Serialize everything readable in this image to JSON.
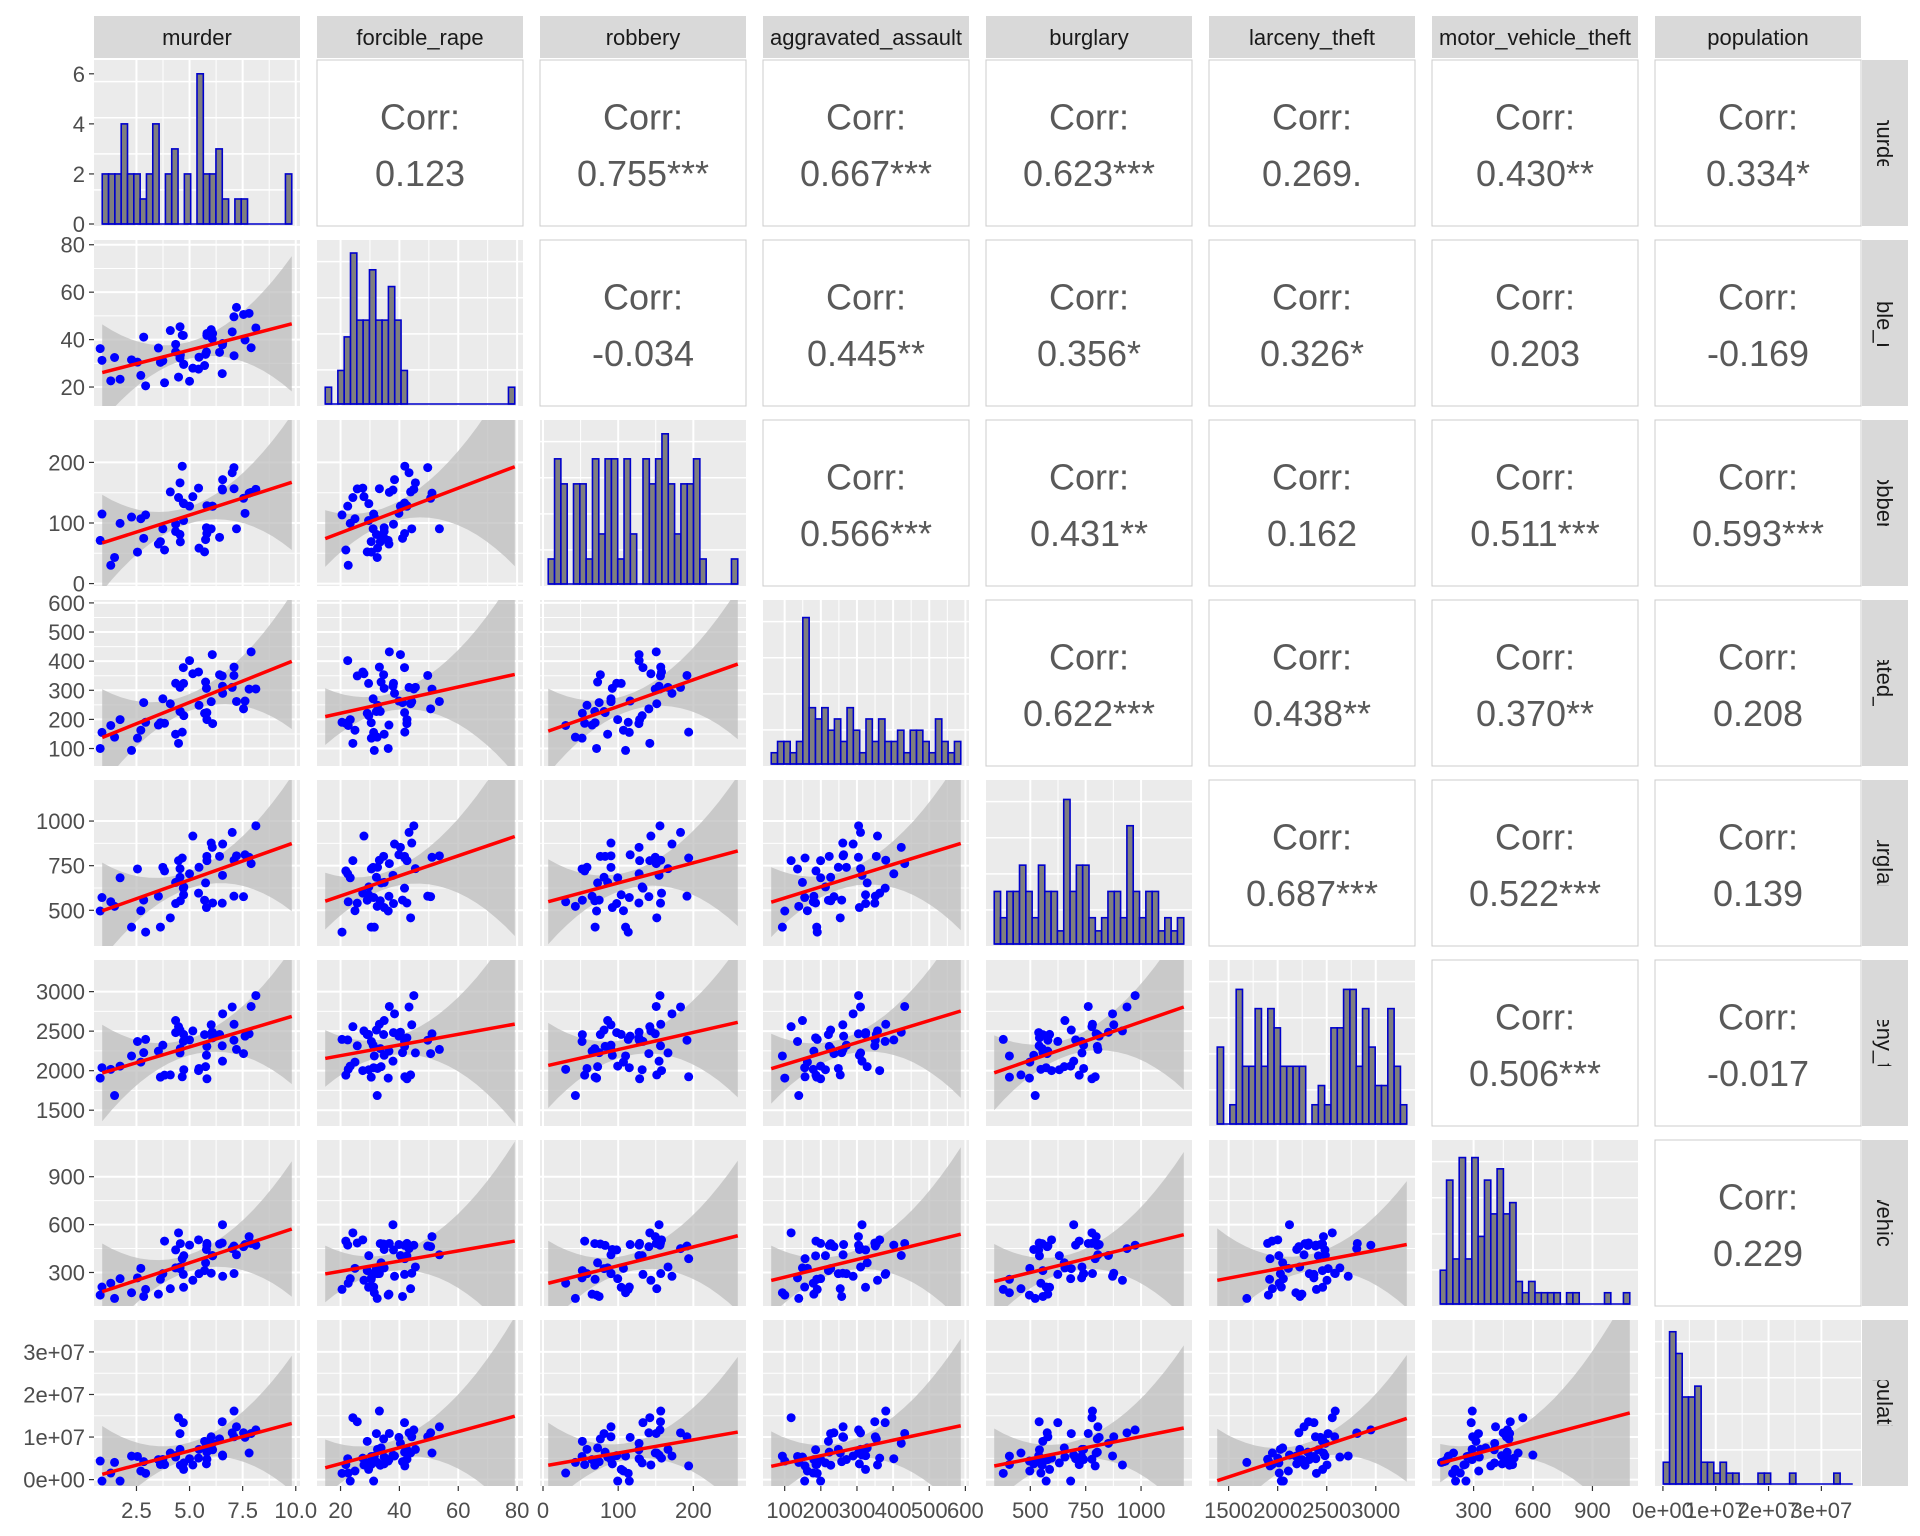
{
  "chart_data": {
    "type": "scatter-matrix",
    "variables": [
      "murder",
      "forcible_rape",
      "robbery",
      "aggravated_assault",
      "burglary",
      "larceny_theft",
      "motor_vehicle_theft",
      "population"
    ],
    "corr_label": "Corr:",
    "correlations": [
      {
        "row": "forcible_rape",
        "col": "murder",
        "value": "0.123"
      },
      {
        "row": "robbery",
        "col": "murder",
        "value": "0.755***"
      },
      {
        "row": "aggravated_assault",
        "col": "murder",
        "value": "0.667***"
      },
      {
        "row": "burglary",
        "col": "murder",
        "value": "0.623***"
      },
      {
        "row": "larceny_theft",
        "col": "murder",
        "value": "0.269."
      },
      {
        "row": "motor_vehicle_theft",
        "col": "murder",
        "value": "0.430**"
      },
      {
        "row": "population",
        "col": "murder",
        "value": "0.334*"
      },
      {
        "row": "robbery",
        "col": "forcible_rape",
        "value": "-0.034"
      },
      {
        "row": "aggravated_assault",
        "col": "forcible_rape",
        "value": "0.445**"
      },
      {
        "row": "burglary",
        "col": "forcible_rape",
        "value": "0.356*"
      },
      {
        "row": "larceny_theft",
        "col": "forcible_rape",
        "value": "0.326*"
      },
      {
        "row": "motor_vehicle_theft",
        "col": "forcible_rape",
        "value": "0.203"
      },
      {
        "row": "population",
        "col": "forcible_rape",
        "value": "-0.169"
      },
      {
        "row": "aggravated_assault",
        "col": "robbery",
        "value": "0.566***"
      },
      {
        "row": "burglary",
        "col": "robbery",
        "value": "0.431**"
      },
      {
        "row": "larceny_theft",
        "col": "robbery",
        "value": "0.162"
      },
      {
        "row": "motor_vehicle_theft",
        "col": "robbery",
        "value": "0.511***"
      },
      {
        "row": "population",
        "col": "robbery",
        "value": "0.593***"
      },
      {
        "row": "burglary",
        "col": "aggravated_assault",
        "value": "0.622***"
      },
      {
        "row": "larceny_theft",
        "col": "aggravated_assault",
        "value": "0.438**"
      },
      {
        "row": "motor_vehicle_theft",
        "col": "aggravated_assault",
        "value": "0.370**"
      },
      {
        "row": "population",
        "col": "aggravated_assault",
        "value": "0.208"
      },
      {
        "row": "larceny_theft",
        "col": "burglary",
        "value": "0.687***"
      },
      {
        "row": "motor_vehicle_theft",
        "col": "burglary",
        "value": "0.522***"
      },
      {
        "row": "population",
        "col": "burglary",
        "value": "0.139"
      },
      {
        "row": "motor_vehicle_theft",
        "col": "larceny_theft",
        "value": "0.506***"
      },
      {
        "row": "population",
        "col": "larceny_theft",
        "value": "-0.017"
      },
      {
        "row": "population",
        "col": "motor_vehicle_theft",
        "value": "0.229"
      }
    ],
    "x_ticks": {
      "murder": [
        {
          "v": 2.5,
          "t": "2.5"
        },
        {
          "v": 5,
          "t": "5.0"
        },
        {
          "v": 7.5,
          "t": "7.5"
        },
        {
          "v": 10,
          "t": "10.0"
        }
      ],
      "forcible_rape": [
        {
          "v": 20,
          "t": "20"
        },
        {
          "v": 40,
          "t": "40"
        },
        {
          "v": 60,
          "t": "60"
        },
        {
          "v": 80,
          "t": "80"
        }
      ],
      "robbery": [
        {
          "v": 0,
          "t": "0"
        },
        {
          "v": 100,
          "t": "100"
        },
        {
          "v": 200,
          "t": "200"
        }
      ],
      "aggravated_assault": [
        {
          "v": 100,
          "t": "100"
        },
        {
          "v": 200,
          "t": "200"
        },
        {
          "v": 300,
          "t": "300"
        },
        {
          "v": 400,
          "t": "400"
        },
        {
          "v": 500,
          "t": "500"
        },
        {
          "v": 600,
          "t": "600"
        }
      ],
      "burglary": [
        {
          "v": 500,
          "t": "500"
        },
        {
          "v": 750,
          "t": "750"
        },
        {
          "v": 1000,
          "t": "1000"
        }
      ],
      "larceny_theft": [
        {
          "v": 1500,
          "t": "1500"
        },
        {
          "v": 2000,
          "t": "2000"
        },
        {
          "v": 2500,
          "t": "2500"
        },
        {
          "v": 3000,
          "t": "3000"
        }
      ],
      "motor_vehicle_theft": [
        {
          "v": 300,
          "t": "300"
        },
        {
          "v": 600,
          "t": "600"
        },
        {
          "v": 900,
          "t": "900"
        }
      ],
      "population": [
        {
          "v": 0,
          "t": "0e+00"
        },
        {
          "v": 10000000,
          "t": "1e+07"
        },
        {
          "v": 20000000,
          "t": "2e+07"
        },
        {
          "v": 30000000,
          "t": "3e+07"
        }
      ]
    },
    "y_ticks": {
      "murder": [
        {
          "v": 0,
          "t": "0"
        },
        {
          "v": 2,
          "t": "2"
        },
        {
          "v": 4,
          "t": "4"
        },
        {
          "v": 6,
          "t": "6"
        }
      ],
      "forcible_rape": [
        {
          "v": 20,
          "t": "20"
        },
        {
          "v": 40,
          "t": "40"
        },
        {
          "v": 60,
          "t": "60"
        },
        {
          "v": 80,
          "t": "80"
        }
      ],
      "robbery": [
        {
          "v": 0,
          "t": "0"
        },
        {
          "v": 100,
          "t": "100"
        },
        {
          "v": 200,
          "t": "200"
        }
      ],
      "aggravated_assault": [
        {
          "v": 100,
          "t": "100"
        },
        {
          "v": 200,
          "t": "200"
        },
        {
          "v": 300,
          "t": "300"
        },
        {
          "v": 400,
          "t": "400"
        },
        {
          "v": 500,
          "t": "500"
        },
        {
          "v": 600,
          "t": "600"
        }
      ],
      "burglary": [
        {
          "v": 500,
          "t": "500"
        },
        {
          "v": 750,
          "t": "750"
        },
        {
          "v": 1000,
          "t": "1000"
        }
      ],
      "larceny_theft": [
        {
          "v": 1500,
          "t": "1500"
        },
        {
          "v": 2000,
          "t": "2000"
        },
        {
          "v": 2500,
          "t": "2500"
        },
        {
          "v": 3000,
          "t": "3000"
        }
      ],
      "motor_vehicle_theft": [
        {
          "v": 300,
          "t": "300"
        },
        {
          "v": 600,
          "t": "600"
        },
        {
          "v": 900,
          "t": "900"
        }
      ],
      "population": [
        {
          "v": 0,
          "t": "0e+00"
        },
        {
          "v": 10000000,
          "t": "1e+07"
        },
        {
          "v": 20000000,
          "t": "2e+07"
        },
        {
          "v": 30000000,
          "t": "3e+07"
        }
      ]
    },
    "ranges": {
      "murder": [
        0.5,
        10.2
      ],
      "forcible_rape": [
        12,
        82
      ],
      "robbery": [
        -4,
        270
      ],
      "aggravated_assault": [
        40,
        610
      ],
      "burglary": [
        300,
        1230
      ],
      "larceny_theft": [
        1300,
        3400
      ],
      "motor_vehicle_theft": [
        90,
        1130
      ],
      "population": [
        -1500000,
        37500000
      ]
    },
    "histograms": {
      "murder": {
        "counts": [
          2,
          2,
          2,
          4,
          2,
          2,
          1,
          2,
          4,
          0,
          2,
          3,
          0,
          2,
          0,
          6,
          2,
          2,
          3,
          1,
          0,
          1,
          1,
          0,
          0,
          0,
          0,
          0,
          0,
          2
        ],
        "ymax": 6.3
      },
      "forcible_rape": {
        "counts": [
          1,
          0,
          2,
          4,
          9,
          5,
          5,
          8,
          5,
          5,
          7,
          5,
          2,
          0,
          0,
          0,
          0,
          0,
          0,
          0,
          0,
          0,
          0,
          0,
          0,
          0,
          0,
          0,
          0,
          1
        ],
        "ymax": 9.4
      },
      "robbery": {
        "counts": [
          1,
          5,
          4,
          0,
          4,
          4,
          1,
          5,
          2,
          5,
          5,
          1,
          5,
          2,
          0,
          5,
          4,
          5,
          6,
          4,
          2,
          4,
          4,
          5,
          1,
          0,
          0,
          0,
          0,
          1
        ],
        "ymax": 6.3
      },
      "aggravated_assault": {
        "counts": [
          1,
          2,
          2,
          1,
          2,
          13,
          5,
          4,
          5,
          3,
          4,
          2,
          5,
          3,
          1,
          4,
          2,
          4,
          2,
          2,
          3,
          1,
          3,
          3,
          2,
          1,
          4,
          2,
          1,
          2
        ],
        "ymax": 14
      },
      "burglary": {
        "counts": [
          4,
          2,
          4,
          4,
          6,
          4,
          2,
          6,
          4,
          4,
          1,
          11,
          4,
          6,
          6,
          2,
          1,
          2,
          4,
          4,
          2,
          9,
          4,
          2,
          4,
          4,
          1,
          2,
          1,
          2
        ],
        "ymax": 12
      },
      "larceny_theft": {
        "counts": [
          4,
          0,
          1,
          7,
          3,
          3,
          6,
          3,
          6,
          5,
          3,
          3,
          3,
          3,
          0,
          1,
          2,
          1,
          5,
          5,
          7,
          7,
          3,
          6,
          4,
          2,
          2,
          6,
          3,
          1
        ],
        "ymax": 8.2
      },
      "motor_vehicle_theft": {
        "counts": [
          3,
          11,
          4,
          13,
          4,
          13,
          6,
          11,
          8,
          12,
          8,
          9,
          2,
          1,
          2,
          1,
          1,
          1,
          1,
          0,
          1,
          1,
          0,
          0,
          0,
          0,
          1,
          0,
          0,
          1
        ],
        "ymax": 14
      },
      "population": {
        "counts": [
          2,
          14,
          12,
          8,
          8,
          9,
          2,
          2,
          1,
          2,
          1,
          1,
          0,
          0,
          0,
          1,
          1,
          0,
          0,
          0,
          1,
          0,
          0,
          0,
          0,
          0,
          0,
          1,
          0,
          0
        ],
        "ymax": 14.5
      }
    },
    "grid": true,
    "point_color": "#0000ff",
    "line_color": "#ff0000",
    "ribbon_color": "#bdbdbd"
  }
}
